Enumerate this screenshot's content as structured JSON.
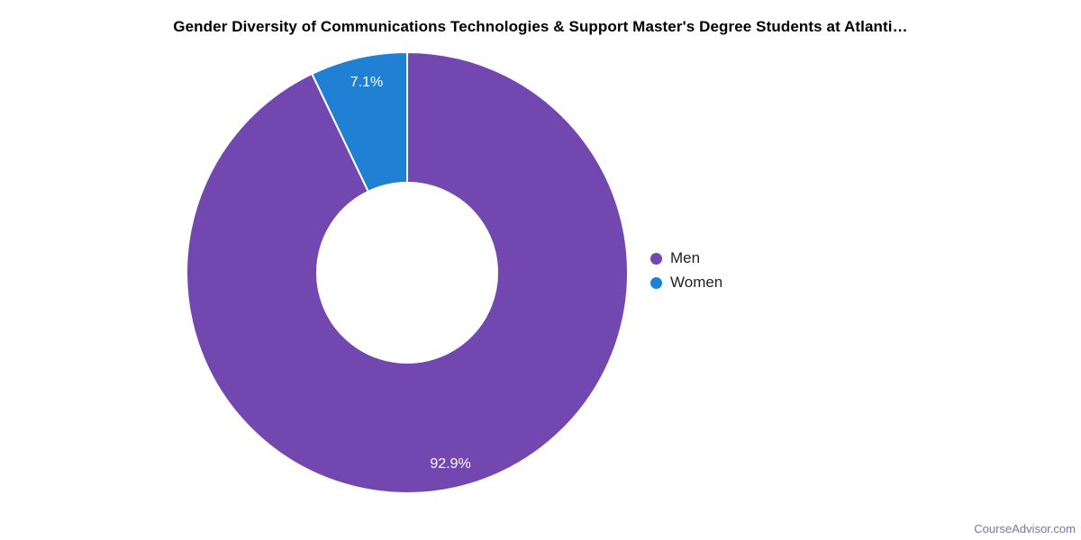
{
  "title": "Gender Diversity of Communications Technologies & Support Master's Degree Students at Atlanti…",
  "legend": {
    "position": "right",
    "items": [
      {
        "label": "Men",
        "color": "#7347B0"
      },
      {
        "label": "Women",
        "color": "#1F80D4"
      }
    ]
  },
  "footer": {
    "link_text": "CourseAdvisor.com",
    "color": "#7D6CBE"
  },
  "chart_data": {
    "type": "pie",
    "donut": true,
    "title": "Gender Diversity of Communications Technologies & Support Master's Degree Students at Atlanti…",
    "categories": [
      "Men",
      "Women"
    ],
    "values": [
      92.9,
      7.1
    ],
    "unit": "%",
    "slice_labels": [
      "92.9%",
      "7.1%"
    ],
    "colors": [
      "#7347B0",
      "#1F80D4"
    ],
    "slice_label_color": "#ffffff",
    "slice_border_color": "#ffffff",
    "background_color": "#ffffff",
    "legend_position": "right",
    "start_angle_deg": 0,
    "direction": "clockwise",
    "inner_radius_ratio": 0.41
  }
}
